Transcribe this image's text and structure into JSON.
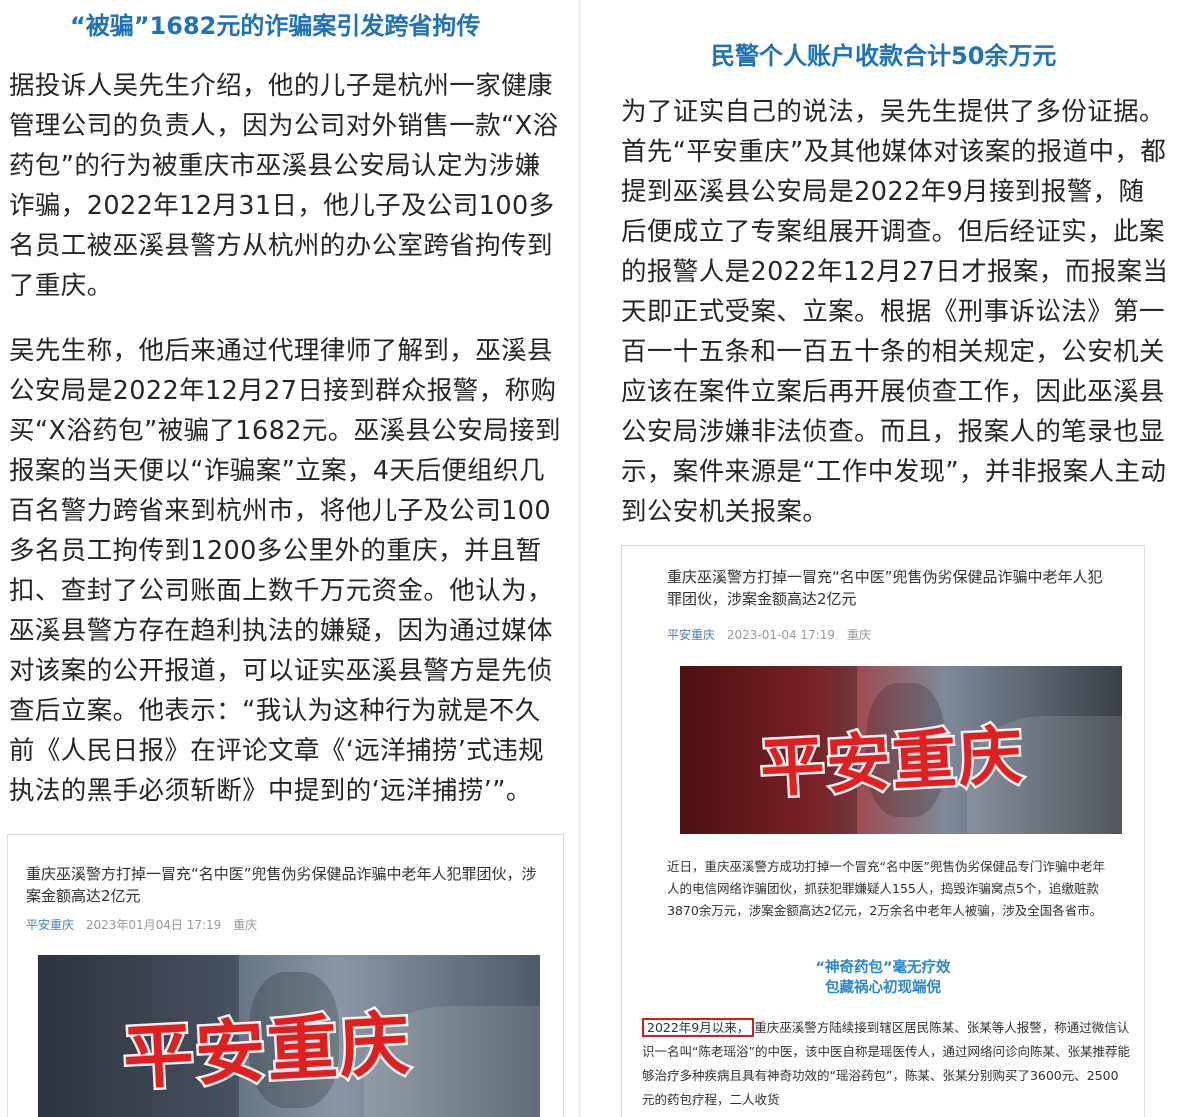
{
  "left": {
    "title": "“被骗”1682元的诈骗案引发跨省拘传",
    "para1": "据投诉人吴先生介绍，他的儿子是杭州一家健康管理公司的负责人，因为公司对外销售一款“X浴药包”的行为被重庆市巫溪县公安局认定为涉嫌诈骗，2022年12月31日，他儿子及公司100多名员工被巫溪县警方从杭州的办公室跨省拘传到了重庆。",
    "para2": "吴先生称，他后来通过代理律师了解到，巫溪县公安局是2022年12月27日接到群众报警，称购买“X浴药包”被骗了1682元。巫溪县公安局接到报案的当天便以“诈骗案”立案，4天后便组织几百名警力跨省来到杭州市，将他儿子及公司100多名员工拘传到1200多公里外的重庆，并且暂扣、查封了公司账面上数千万元资金。他认为，巫溪县警方存在趋利执法的嫌疑，因为通过媒体对该案的公开报道，可以证实巫溪县警方是先侦查后立案。他表示：“我认为这种行为就是不久前《人民日报》在评论文章《‘远洋捕捞’式违规执法的黑手必须斩断》中提到的‘远洋捕捞’”。",
    "card": {
      "title": "重庆巫溪警方打掉一冒充“名中医”兜售伪劣保健品诈骗中老年人犯罪团伙，涉案金额高达2亿元",
      "source": "平安重庆",
      "date": "2023年01月04日 17:19",
      "location": "重庆",
      "banner_text": "平安重庆"
    }
  },
  "right": {
    "title": "民警个人账户收款合计50余万元",
    "para1": "为了证实自己的说法，吴先生提供了多份证据。首先“平安重庆”及其他媒体对该案的报道中，都提到巫溪县公安局是2022年9月接到报警，随后便成立了专案组展开调查。但后经证实，此案的报警人是2022年12月27日才报案，而报案当天即正式受案、立案。根据《刑事诉讼法》第一百一十五条和一百五十条的相关规定，公安机关应该在案件立案后再开展侦查工作，因此巫溪县公安局涉嫌非法侦查。而且，报案人的笔录也显示，案件来源是“工作中发现”，并非报案人主动到公安机关报案。",
    "card": {
      "title": "重庆巫溪警方打掉一冒充“名中医”兜售伪劣保健品诈骗中老年人犯罪团伙，涉案金额高达2亿元",
      "source": "平安重庆",
      "date": "2023-01-04 17:19",
      "location": "重庆",
      "banner_text": "平安重庆",
      "body": "近日，重庆巫溪警方成功打掉一个冒充“名中医”兜售伪劣保健品专门诈骗中老年人的电信网络诈骗团伙，抓获犯罪嫌疑人155人，捣毁诈骗窝点5个，追缴赃款3870余万元，涉案金额高达2亿元，2万余名中老年人被骗，涉及全国各省市。",
      "subhead1": "“神奇药包”毫无疗效",
      "subhead2": "包藏祸心初现端倪",
      "highlight": "2022年9月以来，",
      "body2": "重庆巫溪警方陆续接到辖区居民陈某、张某等人报警，称通过微信认识一名叫“陈老瑶浴”的中医，该中医自称是瑶医传人，通过网络问诊向陈某、张某推荐能够治疗多种疾病且具有神奇功效的“瑶浴药包”，陈某、张某分别购买了3600元、2500元的药包疗程，二人收货"
    }
  }
}
